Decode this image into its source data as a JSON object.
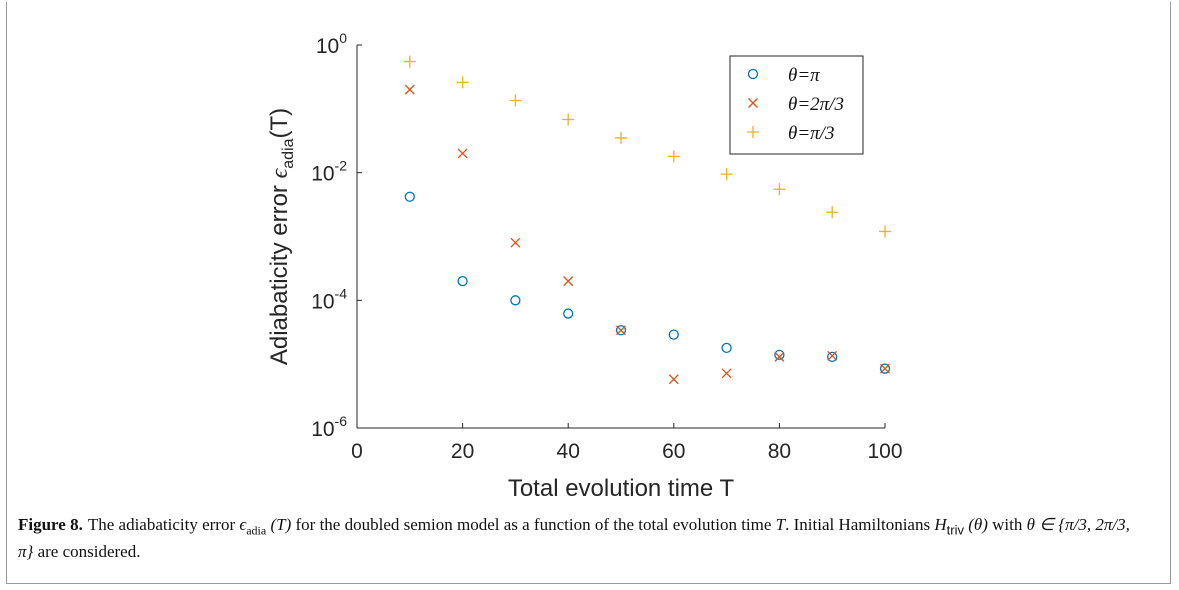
{
  "chart_data": {
    "type": "scatter",
    "xlabel": "Total evolution time T",
    "ylabel_prefix": "Adiabaticity error ",
    "ylabel_symbol": "ϵ",
    "ylabel_sub": "adia",
    "ylabel_suffix": "(T)",
    "xlim": [
      0,
      100
    ],
    "ylim": [
      1e-06,
      1
    ],
    "yscale": "log",
    "xticks": [
      0,
      20,
      40,
      60,
      80,
      100
    ],
    "xtick_labels": [
      "0",
      "20",
      "40",
      "60",
      "80",
      "100"
    ],
    "yticks": [
      1e-06,
      0.0001,
      0.01,
      1
    ],
    "ytick_labels": [
      {
        "base": "10",
        "exp": "-6"
      },
      {
        "base": "10",
        "exp": "-4"
      },
      {
        "base": "10",
        "exp": "-2"
      },
      {
        "base": "10",
        "exp": "0"
      }
    ],
    "grid": false,
    "legend_position": "top-right",
    "series": [
      {
        "name": "θ=π",
        "marker": "circle",
        "color": "#0072BD",
        "x": [
          10,
          20,
          30,
          40,
          50,
          60,
          70,
          80,
          90,
          100
        ],
        "y": [
          0.0042,
          0.0002,
          0.0001,
          6.2e-05,
          3.4e-05,
          2.9e-05,
          1.8e-05,
          1.4e-05,
          1.3e-05,
          8.5e-06
        ]
      },
      {
        "name": "θ=2π/3",
        "marker": "x",
        "color": "#D95319",
        "x": [
          10,
          20,
          30,
          40,
          50,
          60,
          70,
          80,
          90,
          100
        ],
        "y": [
          0.2,
          0.02,
          0.0008,
          0.0002,
          3.4e-05,
          5.8e-06,
          7.2e-06,
          1.3e-05,
          1.35e-05,
          8.5e-06
        ]
      },
      {
        "name": "θ=π/3",
        "marker": "plus",
        "color": "#EDB120",
        "x": [
          10,
          20,
          30,
          40,
          50,
          60,
          70,
          80,
          90,
          100
        ],
        "y": [
          0.55,
          0.26,
          0.135,
          0.068,
          0.035,
          0.018,
          0.0095,
          0.0055,
          0.0024,
          0.0012
        ]
      }
    ]
  },
  "caption": {
    "label": "Figure 8.",
    "part1": "The adiabaticity error ",
    "sym_epsilon": "ϵ",
    "sym_sub": "adia",
    "sym_arg": " (T)",
    "part2": " for the doubled semion model as a function of the total evolution time ",
    "sym_T": "T",
    "part3": ". Initial Hamiltonians ",
    "sym_H": "H",
    "sym_H_sub": "triv",
    "sym_H_arg": " (θ)",
    "part4": " with ",
    "sym_set": "θ ∈ {π/3, 2π/3, π}",
    "part5": " are considered."
  }
}
